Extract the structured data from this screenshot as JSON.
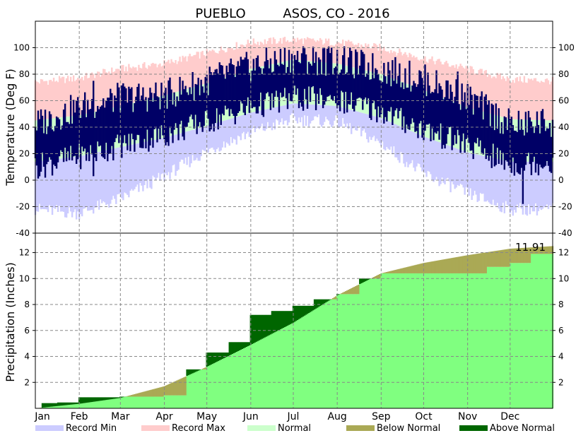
{
  "chart_data": [
    {
      "type": "area",
      "title_station": "PUEBLO",
      "title_network": "ASOS, CO - 2016",
      "ylabel": "Temperature (Deg F)",
      "ylim": [
        -40,
        120
      ],
      "yticks": [
        -40,
        -20,
        0,
        20,
        40,
        60,
        80,
        100
      ],
      "grid": true,
      "months": [
        "Jan",
        "Feb",
        "Mar",
        "Apr",
        "May",
        "Jun",
        "Jul",
        "Aug",
        "Sep",
        "Oct",
        "Nov",
        "Dec"
      ],
      "month_start_day": [
        1,
        32,
        61,
        92,
        122,
        153,
        183,
        214,
        245,
        275,
        306,
        336
      ],
      "days_in_year": 366,
      "normal_high_anchors": {
        "day": [
          1,
          32,
          61,
          92,
          122,
          153,
          183,
          214,
          245,
          275,
          306,
          336,
          366
        ],
        "value": [
          45,
          49,
          56,
          64,
          73,
          84,
          91,
          88,
          80,
          68,
          55,
          46,
          45
        ]
      },
      "normal_low_anchors": {
        "day": [
          1,
          32,
          61,
          92,
          122,
          153,
          183,
          214,
          245,
          275,
          306,
          336,
          366
        ],
        "value": [
          14,
          18,
          25,
          32,
          41,
          51,
          58,
          56,
          47,
          33,
          21,
          14,
          14
        ]
      },
      "record_high_anchors": {
        "day": [
          1,
          32,
          61,
          92,
          122,
          153,
          183,
          214,
          245,
          275,
          306,
          336,
          366
        ],
        "value": [
          74,
          77,
          84,
          88,
          96,
          104,
          106,
          104,
          100,
          92,
          84,
          76,
          75
        ]
      },
      "record_low_anchors": {
        "day": [
          1,
          32,
          61,
          92,
          122,
          153,
          183,
          214,
          245,
          275,
          306,
          336,
          366
        ],
        "value": [
          -22,
          -25,
          -14,
          3,
          22,
          36,
          46,
          44,
          28,
          5,
          -10,
          -22,
          -22
        ]
      },
      "observed_high_anchors": {
        "day": [
          1,
          32,
          61,
          92,
          122,
          153,
          183,
          214,
          245,
          275,
          306,
          336,
          366
        ],
        "value": [
          42,
          55,
          62,
          64,
          75,
          86,
          92,
          90,
          84,
          76,
          62,
          42,
          44
        ]
      },
      "observed_low_anchors": {
        "day": [
          1,
          32,
          61,
          92,
          122,
          153,
          183,
          214,
          245,
          275,
          306,
          336,
          366
        ],
        "value": [
          10,
          18,
          26,
          34,
          44,
          55,
          62,
          60,
          52,
          38,
          26,
          12,
          14
        ]
      },
      "observed_daily": {
        "days": [
          18,
          42,
          60,
          120,
          210,
          299,
          345
        ],
        "high": [
          46,
          75,
          70,
          66,
          100,
          82,
          38
        ],
        "low": [
          18,
          3,
          28,
          41,
          61,
          38,
          -18
        ]
      }
    },
    {
      "type": "area",
      "ylabel": "Precipitation (Inches)",
      "ylim": [
        0,
        13.5
      ],
      "yticks": [
        2,
        4,
        6,
        8,
        10,
        12
      ],
      "grid": true,
      "annotation": "11.91",
      "normal_cumulative": {
        "day": [
          1,
          32,
          61,
          92,
          122,
          153,
          183,
          214,
          245,
          275,
          306,
          336,
          366
        ],
        "value": [
          0,
          0.35,
          0.8,
          1.7,
          3.2,
          4.9,
          6.6,
          8.7,
          10.4,
          11.2,
          11.8,
          12.3,
          12.5
        ]
      },
      "observed_cumulative": {
        "day": [
          1,
          6,
          17,
          32,
          61,
          92,
          108,
          122,
          138,
          153,
          168,
          183,
          198,
          214,
          230,
          245,
          306,
          320,
          336,
          351,
          366
        ],
        "value": [
          0,
          0.4,
          0.45,
          0.85,
          0.9,
          1.0,
          3.0,
          4.3,
          5.1,
          7.2,
          7.5,
          7.9,
          8.4,
          8.8,
          10.0,
          10.4,
          10.4,
          10.9,
          11.2,
          11.9,
          11.91
        ]
      }
    }
  ],
  "legend": [
    {
      "label": "Record Min",
      "color": "#ccccff"
    },
    {
      "label": "Record Max",
      "color": "#ffcccc"
    },
    {
      "label": "Normal",
      "color": "#ccffcc"
    },
    {
      "label": "Below Normal",
      "color": "#aaa955"
    },
    {
      "label": "Above Normal",
      "color": "#006600"
    }
  ],
  "colors": {
    "observed_temp": "#000066",
    "normal_precip": "#80ff80",
    "below_normal": "#aaa955",
    "above_normal": "#006600",
    "record_min": "#ccccff",
    "record_max": "#ffcccc",
    "normal": "#ccffcc"
  }
}
